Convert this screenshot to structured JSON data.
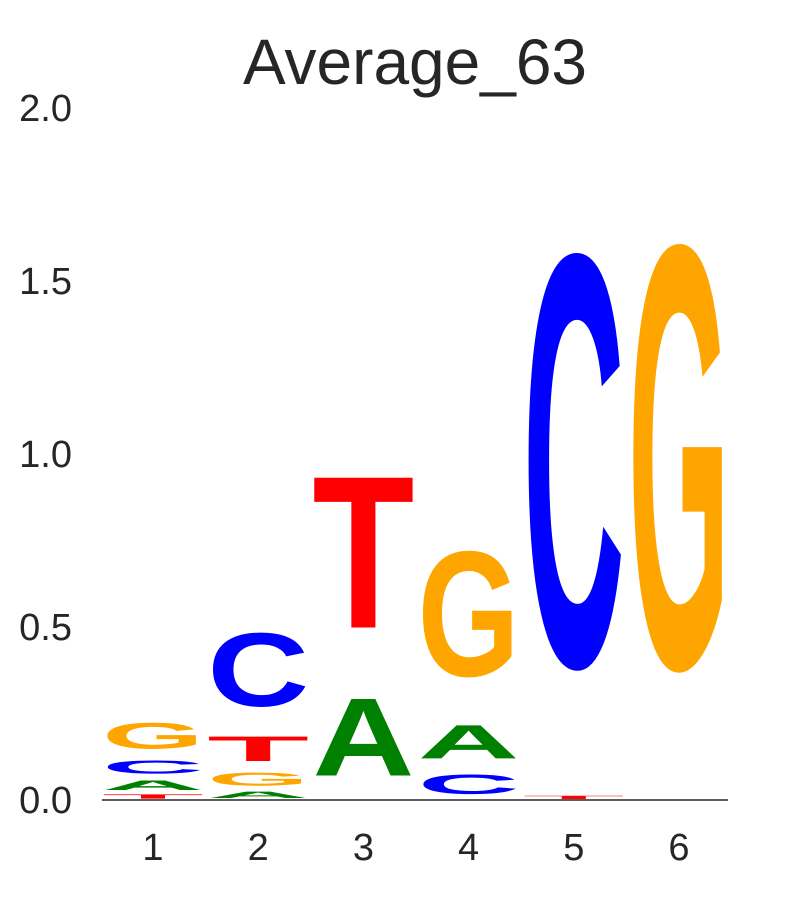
{
  "chart_data": {
    "type": "sequence_logo",
    "title": "Average_63",
    "xlabel": "",
    "ylabel": "",
    "ylim": [
      0,
      2
    ],
    "yticks": [
      "0.0",
      "0.5",
      "1.0",
      "1.5",
      "2.0"
    ],
    "positions": [
      "1",
      "2",
      "3",
      "4",
      "5",
      "6"
    ],
    "colors": {
      "A": "#008000",
      "C": "#0000ff",
      "G": "#ffa500",
      "T": "#ff0000"
    },
    "stacks": [
      [
        {
          "base": "T",
          "value": 0.02
        },
        {
          "base": "A",
          "value": 0.045
        },
        {
          "base": "C",
          "value": 0.06
        },
        {
          "base": "G",
          "value": 0.12
        }
      ],
      [
        {
          "base": "A",
          "value": 0.03
        },
        {
          "base": "G",
          "value": 0.06
        },
        {
          "base": "T",
          "value": 0.115
        },
        {
          "base": "C",
          "value": 0.34
        }
      ],
      [
        {
          "base": "A",
          "value": 0.36
        },
        {
          "base": "T",
          "value": 0.705
        }
      ],
      [
        {
          "base": "C",
          "value": 0.09
        },
        {
          "base": "A",
          "value": 0.155
        },
        {
          "base": "G",
          "value": 0.58
        }
      ],
      [
        {
          "base": "T",
          "value": 0.015
        },
        {
          "base": "C",
          "value": 1.91
        }
      ],
      [
        {
          "base": "G",
          "value": 1.96
        }
      ]
    ]
  }
}
